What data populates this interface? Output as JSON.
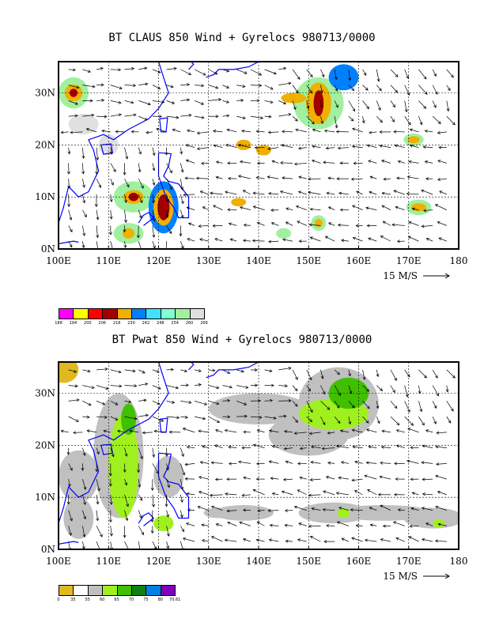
{
  "chart_data": [
    {
      "type": "heatmap",
      "title": "BT CLAUS 850 Wind + Gyrelocs 980713/0000",
      "x_ticks": [
        "100E",
        "110E",
        "120E",
        "130E",
        "140E",
        "150E",
        "160E",
        "170E",
        "180"
      ],
      "y_ticks": [
        "0N",
        "10N",
        "20N",
        "30N"
      ],
      "xlim": [
        100,
        180
      ],
      "ylim": [
        0,
        36
      ],
      "grid": true,
      "vector_key": "15 M/S",
      "colorbar_labels": [
        "188",
        "194",
        "200",
        "206",
        "218",
        "230",
        "242",
        "248",
        "254",
        "260",
        "266"
      ],
      "colorbar_colors": [
        "#ff00ff",
        "#ffff00",
        "#ff0000",
        "#a00000",
        "#f0b000",
        "#0080ff",
        "#40e0ff",
        "#80ffd0",
        "#a0f0a0",
        "#e0e0e0"
      ]
    },
    {
      "type": "heatmap",
      "title": "BT Pwat 850 Wind + Gyrelocs 980713/0000",
      "x_ticks": [
        "100E",
        "110E",
        "120E",
        "130E",
        "140E",
        "150E",
        "160E",
        "170E",
        "180"
      ],
      "y_ticks": [
        "0N",
        "10N",
        "20N",
        "30N"
      ],
      "xlim": [
        100,
        180
      ],
      "ylim": [
        0,
        36
      ],
      "grid": true,
      "vector_key": "15 M/S",
      "colorbar_labels": [
        "0",
        "35",
        "55",
        "60",
        "65",
        "70",
        "75",
        "80",
        "70.61"
      ],
      "colorbar_colors": [
        "#e0b820",
        "#ffffff",
        "#c0c0c0",
        "#a0f020",
        "#40c000",
        "#108010",
        "#0080e0",
        "#8000c0"
      ]
    }
  ]
}
